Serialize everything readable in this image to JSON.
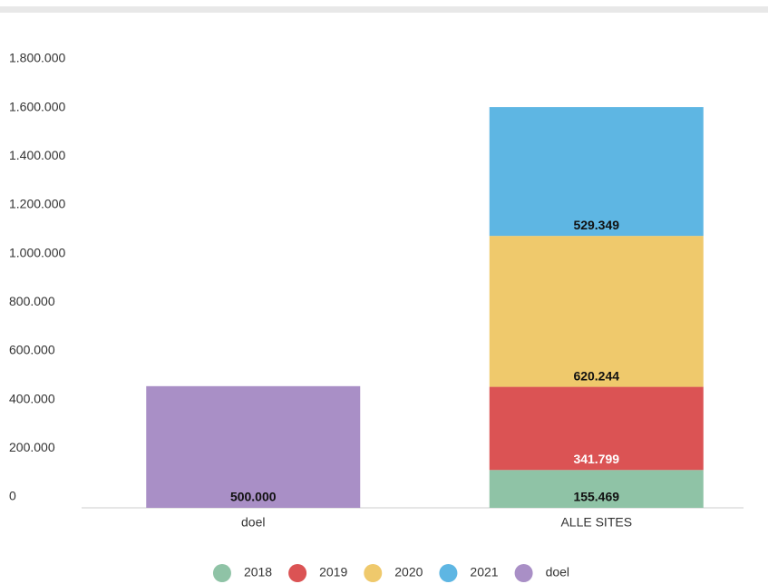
{
  "chart_data": {
    "type": "stacked_bar",
    "categories": [
      "doel",
      "ALLE SITES"
    ],
    "series": [
      {
        "name": "2018",
        "color": "#8fc3a6",
        "values": [
          null,
          155469
        ],
        "value_labels": [
          null,
          "155.469"
        ]
      },
      {
        "name": "2019",
        "color": "#db5354",
        "values": [
          null,
          341799
        ],
        "value_labels": [
          null,
          "341.799"
        ]
      },
      {
        "name": "2020",
        "color": "#efc96c",
        "values": [
          null,
          620244
        ],
        "value_labels": [
          null,
          "620.244"
        ]
      },
      {
        "name": "2021",
        "color": "#5eb6e3",
        "values": [
          null,
          529349
        ],
        "value_labels": [
          null,
          "529.349"
        ]
      },
      {
        "name": "doel",
        "color": "#a98fc6",
        "values": [
          500000,
          null
        ],
        "value_labels": [
          "500.000",
          null
        ]
      }
    ],
    "ylim": [
      0,
      1800000
    ],
    "yticks": [
      0,
      {
        "value": 200000,
        "label": "200.000"
      },
      {
        "value": 400000,
        "label": "400.000"
      },
      {
        "value": 600000,
        "label": "600.000"
      },
      {
        "value": 800000,
        "label": "800.000"
      },
      {
        "value": 1000000,
        "label": "1.000.000"
      },
      {
        "value": 1200000,
        "label": "1.200.000"
      },
      {
        "value": 1400000,
        "label": "1.400.000"
      },
      {
        "value": 1600000,
        "label": "1.600.000"
      },
      {
        "value": 1800000,
        "label": "1.800.000"
      }
    ],
    "grid": false,
    "legend": "bottom"
  }
}
